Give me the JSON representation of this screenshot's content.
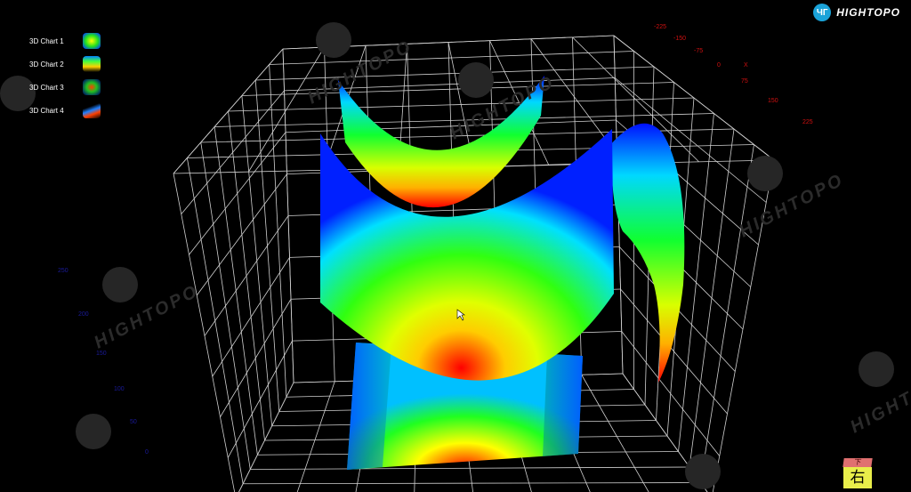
{
  "brand": {
    "name": "HIGHTOPO",
    "badge": "ЧГ",
    "watermark": "HIGHTOPO"
  },
  "legend": {
    "items": [
      {
        "label": "3D Chart 1"
      },
      {
        "label": "3D Chart 2"
      },
      {
        "label": "3D Chart 3"
      },
      {
        "label": "3D Chart 4"
      }
    ]
  },
  "view_cube": {
    "top": "下",
    "front": "右"
  },
  "chart_data": {
    "type": "surface-3d",
    "title": "",
    "x_axis": {
      "label": "X",
      "ticks": [
        "-225",
        "-150",
        "-75",
        "0",
        "75",
        "150",
        "225"
      ]
    },
    "y_axis": {
      "label": "",
      "ticks": [
        "250",
        "200",
        "150",
        "100",
        "50",
        "0"
      ]
    },
    "grid": true,
    "colormap": [
      "#0000ff",
      "#00e0ff",
      "#00ff40",
      "#c8ff00",
      "#ffff00",
      "#ff0000"
    ],
    "series": [
      {
        "shape": "saddle surface (upper back)"
      },
      {
        "shape": "saddle surface (front main)"
      },
      {
        "shape": "flat plane projection (bottom)"
      },
      {
        "shape": "curved saddle surface (right side)"
      }
    ],
    "colors": {
      "x_ticks": "#d01010",
      "y_ticks": "#1a1a9a",
      "grid": "#d0d0d0",
      "background": "#000000"
    }
  }
}
